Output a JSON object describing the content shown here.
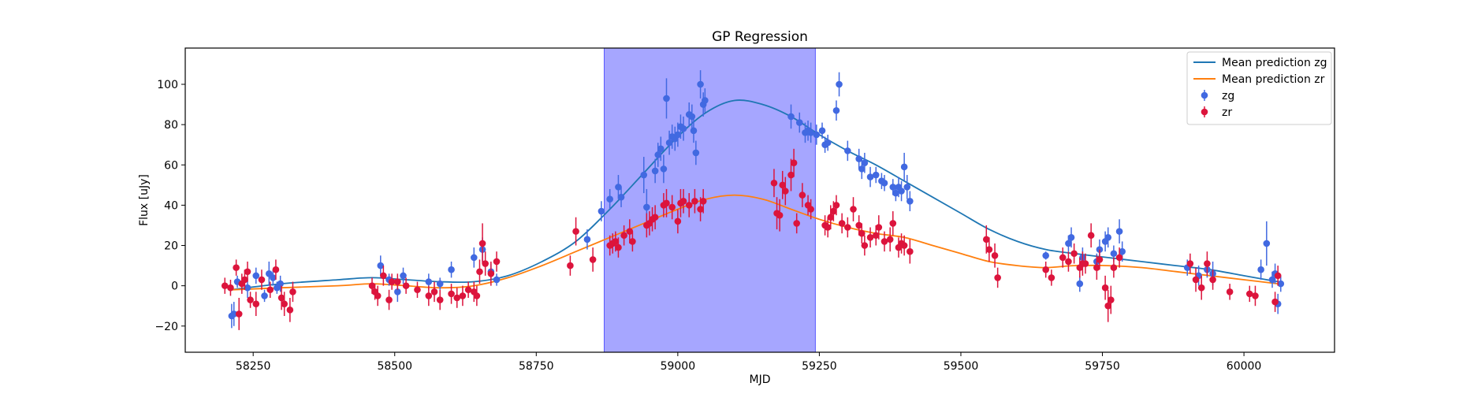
{
  "chart_data": {
    "type": "scatter",
    "title": "GP Regression",
    "xlabel": "MJD",
    "ylabel": "Flux [uJy]",
    "xlim": [
      58130,
      60160
    ],
    "ylim": [
      -33,
      118
    ],
    "xticks": [
      58250,
      58500,
      58750,
      59000,
      59250,
      59500,
      59750,
      60000
    ],
    "yticks": [
      -20,
      0,
      20,
      40,
      60,
      80,
      100
    ],
    "grid": false,
    "legend_placement": "top-right",
    "shaded_region": {
      "x0": 58870,
      "x1": 59243,
      "color": "#a6a6ff"
    },
    "series": [
      {
        "name": "Mean prediction zg",
        "kind": "line",
        "color": "#1f77b4",
        "x": [
          58210,
          58300,
          58400,
          58460,
          58520,
          58580,
          58640,
          58700,
          58760,
          58820,
          58880,
          58940,
          59000,
          59050,
          59100,
          59150,
          59200,
          59250,
          59300,
          59350,
          59400,
          59450,
          59500,
          59550,
          59600,
          59650,
          59700,
          59760,
          59820,
          59880,
          59940,
          60000,
          60060
        ],
        "y": [
          -2,
          1,
          3,
          4,
          3,
          2,
          2,
          5,
          12,
          22,
          38,
          56,
          74,
          86,
          92,
          90,
          84,
          75,
          67,
          60,
          52,
          44,
          36,
          28,
          22,
          18,
          16,
          14,
          12,
          10,
          8,
          5,
          2
        ]
      },
      {
        "name": "Mean prediction zr",
        "kind": "line",
        "color": "#ff7f0e",
        "x": [
          58210,
          58300,
          58400,
          58460,
          58520,
          58580,
          58640,
          58700,
          58760,
          58820,
          58880,
          58940,
          59000,
          59050,
          59100,
          59150,
          59200,
          59250,
          59300,
          59350,
          59400,
          59450,
          59500,
          59550,
          59600,
          59650,
          59700,
          59760,
          59820,
          59880,
          59940,
          60000,
          60060
        ],
        "y": [
          -2,
          -1,
          0,
          1,
          0,
          -1,
          0,
          4,
          10,
          17,
          24,
          31,
          38,
          43,
          45,
          43,
          38,
          33,
          29,
          26,
          24,
          20,
          16,
          12,
          10,
          9,
          10,
          10,
          9,
          7,
          5,
          3,
          1
        ]
      },
      {
        "name": "zg",
        "kind": "errorbar",
        "color": "#4169e1",
        "points": [
          [
            58212,
            -15,
            6
          ],
          [
            58216,
            -14,
            6
          ],
          [
            58222,
            2,
            3
          ],
          [
            58240,
            -1,
            5
          ],
          [
            58255,
            5,
            4
          ],
          [
            58270,
            -5,
            3
          ],
          [
            58278,
            6,
            6
          ],
          [
            58285,
            4,
            4
          ],
          [
            58292,
            -1,
            3
          ],
          [
            58298,
            1,
            4
          ],
          [
            58475,
            10,
            5
          ],
          [
            58490,
            3,
            3
          ],
          [
            58505,
            -3,
            5
          ],
          [
            58515,
            5,
            4
          ],
          [
            58560,
            2,
            4
          ],
          [
            58580,
            1,
            3
          ],
          [
            58600,
            8,
            4
          ],
          [
            58640,
            14,
            5
          ],
          [
            58655,
            18,
            6
          ],
          [
            58670,
            7,
            4
          ],
          [
            58680,
            3,
            3
          ],
          [
            58840,
            23,
            5
          ],
          [
            58865,
            37,
            5
          ],
          [
            58880,
            43,
            5
          ],
          [
            58895,
            49,
            6
          ],
          [
            58900,
            44,
            5
          ],
          [
            58940,
            55,
            9
          ],
          [
            58945,
            39,
            9
          ],
          [
            58960,
            57,
            6
          ],
          [
            58965,
            65,
            6
          ],
          [
            58970,
            68,
            6
          ],
          [
            58975,
            58,
            7
          ],
          [
            58980,
            93,
            10
          ],
          [
            58985,
            71,
            6
          ],
          [
            58990,
            74,
            6
          ],
          [
            58995,
            73,
            6
          ],
          [
            59000,
            75,
            6
          ],
          [
            59005,
            79,
            6
          ],
          [
            59010,
            78,
            6
          ],
          [
            59020,
            85,
            6
          ],
          [
            59025,
            84,
            6
          ],
          [
            59028,
            77,
            6
          ],
          [
            59032,
            66,
            6
          ],
          [
            59040,
            100,
            7
          ],
          [
            59045,
            90,
            6
          ],
          [
            59048,
            92,
            6
          ],
          [
            59200,
            84,
            6
          ],
          [
            59215,
            81,
            5
          ],
          [
            59225,
            76,
            5
          ],
          [
            59230,
            77,
            5
          ],
          [
            59235,
            76,
            5
          ],
          [
            59245,
            75,
            5
          ],
          [
            59255,
            77,
            4
          ],
          [
            59260,
            70,
            4
          ],
          [
            59265,
            71,
            4
          ],
          [
            59280,
            87,
            5
          ],
          [
            59285,
            100,
            6
          ],
          [
            59300,
            67,
            5
          ],
          [
            59320,
            63,
            5
          ],
          [
            59325,
            58,
            5
          ],
          [
            59330,
            61,
            5
          ],
          [
            59340,
            54,
            5
          ],
          [
            59350,
            55,
            4
          ],
          [
            59360,
            52,
            4
          ],
          [
            59365,
            51,
            4
          ],
          [
            59380,
            49,
            4
          ],
          [
            59385,
            46,
            4
          ],
          [
            59390,
            49,
            5
          ],
          [
            59395,
            47,
            5
          ],
          [
            59400,
            59,
            7
          ],
          [
            59405,
            49,
            6
          ],
          [
            59410,
            42,
            5
          ],
          [
            59650,
            15,
            2
          ],
          [
            59690,
            21,
            4
          ],
          [
            59695,
            24,
            5
          ],
          [
            59710,
            1,
            4
          ],
          [
            59715,
            14,
            5
          ],
          [
            59740,
            12,
            4
          ],
          [
            59745,
            18,
            5
          ],
          [
            59755,
            22,
            5
          ],
          [
            59760,
            24,
            5
          ],
          [
            59770,
            16,
            4
          ],
          [
            59780,
            27,
            6
          ],
          [
            59785,
            17,
            5
          ],
          [
            59900,
            9,
            4
          ],
          [
            59920,
            5,
            5
          ],
          [
            59935,
            8,
            4
          ],
          [
            59945,
            6,
            6
          ],
          [
            60030,
            8,
            5
          ],
          [
            60040,
            21,
            11
          ],
          [
            60050,
            3,
            4
          ],
          [
            60055,
            6,
            5
          ],
          [
            60060,
            -9,
            5
          ],
          [
            60065,
            1,
            4
          ]
        ]
      },
      {
        "name": "zr",
        "kind": "errorbar",
        "color": "#dc143c",
        "points": [
          [
            58200,
            0,
            4
          ],
          [
            58210,
            -1,
            4
          ],
          [
            58220,
            9,
            4
          ],
          [
            58225,
            -14,
            8
          ],
          [
            58230,
            1,
            5
          ],
          [
            58235,
            3,
            5
          ],
          [
            58240,
            7,
            5
          ],
          [
            58245,
            -7,
            4
          ],
          [
            58255,
            -9,
            6
          ],
          [
            58265,
            3,
            5
          ],
          [
            58280,
            -2,
            4
          ],
          [
            58290,
            8,
            5
          ],
          [
            58300,
            -6,
            6
          ],
          [
            58305,
            -9,
            6
          ],
          [
            58315,
            -12,
            6
          ],
          [
            58320,
            -3,
            5
          ],
          [
            58460,
            0,
            4
          ],
          [
            58465,
            -3,
            4
          ],
          [
            58470,
            -5,
            5
          ],
          [
            58480,
            5,
            5
          ],
          [
            58490,
            -7,
            5
          ],
          [
            58495,
            2,
            4
          ],
          [
            58505,
            2,
            4
          ],
          [
            58520,
            0,
            4
          ],
          [
            58540,
            -2,
            4
          ],
          [
            58560,
            -5,
            5
          ],
          [
            58570,
            -3,
            5
          ],
          [
            58580,
            -7,
            5
          ],
          [
            58600,
            -4,
            5
          ],
          [
            58610,
            -6,
            5
          ],
          [
            58620,
            -5,
            5
          ],
          [
            58630,
            -2,
            4
          ],
          [
            58640,
            -3,
            5
          ],
          [
            58645,
            -5,
            5
          ],
          [
            58650,
            7,
            6
          ],
          [
            58655,
            21,
            10
          ],
          [
            58660,
            11,
            6
          ],
          [
            58670,
            6,
            6
          ],
          [
            58680,
            12,
            5
          ],
          [
            58810,
            10,
            5
          ],
          [
            58820,
            27,
            7
          ],
          [
            58850,
            13,
            6
          ],
          [
            58880,
            20,
            5
          ],
          [
            58885,
            21,
            5
          ],
          [
            58890,
            22,
            5
          ],
          [
            58895,
            19,
            5
          ],
          [
            58905,
            25,
            5
          ],
          [
            58915,
            27,
            6
          ],
          [
            58920,
            22,
            5
          ],
          [
            58945,
            30,
            6
          ],
          [
            58950,
            31,
            6
          ],
          [
            58955,
            33,
            6
          ],
          [
            58960,
            34,
            6
          ],
          [
            58975,
            40,
            6
          ],
          [
            58980,
            41,
            7
          ],
          [
            58990,
            39,
            6
          ],
          [
            59000,
            32,
            6
          ],
          [
            59005,
            41,
            7
          ],
          [
            59010,
            42,
            6
          ],
          [
            59020,
            40,
            6
          ],
          [
            59030,
            42,
            6
          ],
          [
            59040,
            38,
            6
          ],
          [
            59045,
            42,
            6
          ],
          [
            59170,
            51,
            7
          ],
          [
            59175,
            36,
            8
          ],
          [
            59180,
            35,
            8
          ],
          [
            59185,
            50,
            7
          ],
          [
            59190,
            47,
            7
          ],
          [
            59200,
            55,
            8
          ],
          [
            59205,
            61,
            7
          ],
          [
            59210,
            31,
            5
          ],
          [
            59220,
            45,
            6
          ],
          [
            59230,
            40,
            5
          ],
          [
            59235,
            38,
            5
          ],
          [
            59260,
            30,
            5
          ],
          [
            59265,
            29,
            5
          ],
          [
            59270,
            34,
            6
          ],
          [
            59275,
            37,
            5
          ],
          [
            59280,
            40,
            5
          ],
          [
            59290,
            31,
            5
          ],
          [
            59300,
            29,
            5
          ],
          [
            59310,
            38,
            6
          ],
          [
            59320,
            30,
            5
          ],
          [
            59325,
            26,
            5
          ],
          [
            59330,
            20,
            5
          ],
          [
            59340,
            24,
            5
          ],
          [
            59350,
            25,
            5
          ],
          [
            59355,
            29,
            6
          ],
          [
            59365,
            22,
            5
          ],
          [
            59375,
            23,
            6
          ],
          [
            59380,
            31,
            6
          ],
          [
            59390,
            19,
            5
          ],
          [
            59395,
            21,
            5
          ],
          [
            59400,
            20,
            5
          ],
          [
            59410,
            17,
            6
          ],
          [
            59545,
            23,
            7
          ],
          [
            59550,
            18,
            6
          ],
          [
            59560,
            15,
            6
          ],
          [
            59565,
            4,
            5
          ],
          [
            59650,
            8,
            4
          ],
          [
            59660,
            4,
            4
          ],
          [
            59680,
            14,
            5
          ],
          [
            59690,
            12,
            5
          ],
          [
            59700,
            16,
            5
          ],
          [
            59710,
            9,
            5
          ],
          [
            59715,
            11,
            6
          ],
          [
            59720,
            11,
            5
          ],
          [
            59730,
            25,
            6
          ],
          [
            59740,
            9,
            6
          ],
          [
            59745,
            13,
            5
          ],
          [
            59755,
            -1,
            6
          ],
          [
            59760,
            -10,
            8
          ],
          [
            59765,
            -7,
            7
          ],
          [
            59770,
            9,
            5
          ],
          [
            59780,
            14,
            5
          ],
          [
            59905,
            11,
            5
          ],
          [
            59915,
            3,
            6
          ],
          [
            59925,
            -1,
            6
          ],
          [
            59935,
            11,
            6
          ],
          [
            59945,
            3,
            5
          ],
          [
            59975,
            -3,
            4
          ],
          [
            60010,
            -4,
            4
          ],
          [
            60020,
            -5,
            5
          ],
          [
            60055,
            -8,
            5
          ],
          [
            60060,
            5,
            5
          ]
        ]
      }
    ]
  }
}
